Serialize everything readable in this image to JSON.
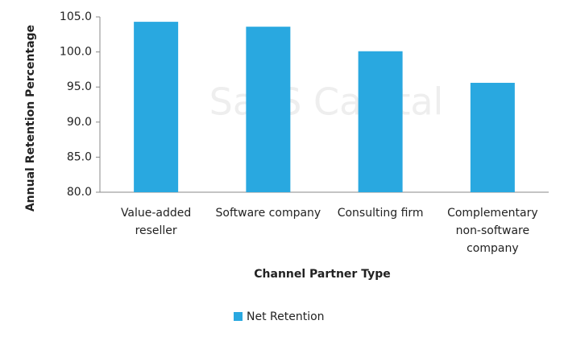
{
  "chart_data": {
    "type": "bar",
    "watermark": "SaaS Capital",
    "x_label": "Channel Partner Type",
    "y_label": "Annual Retention Percentage",
    "categories": [
      "Value-added reseller",
      "Software company",
      "Consulting firm",
      "Complementary non-software company"
    ],
    "series": [
      {
        "name": "Net Retention",
        "color": "#29a8e0",
        "values": [
          104.3,
          103.6,
          100.1,
          95.6
        ]
      }
    ],
    "ylim": [
      80,
      105
    ],
    "yticks": [
      {
        "value": 80,
        "label": "80.0"
      },
      {
        "value": 85,
        "label": "85.0"
      },
      {
        "value": 90,
        "label": "90.0"
      },
      {
        "value": 95,
        "label": "95.0"
      },
      {
        "value": 100,
        "label": "100.0"
      },
      {
        "value": 105,
        "label": "105.0"
      }
    ],
    "legend": "bottom"
  }
}
